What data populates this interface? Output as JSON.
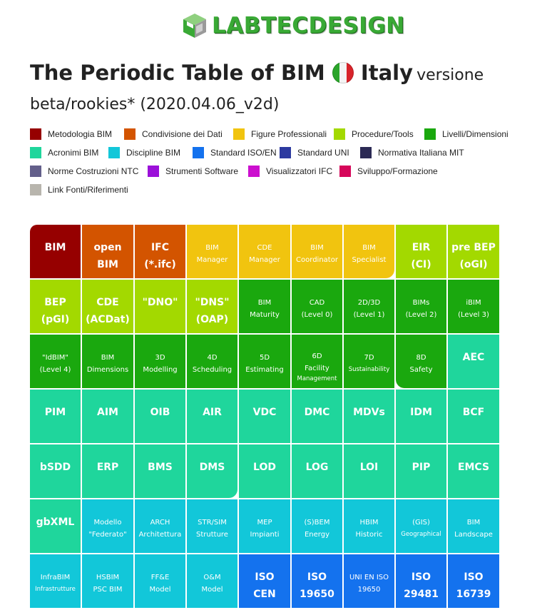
{
  "logo": {
    "text": "LABTECDESIGN",
    "icon": "cube-icon"
  },
  "title": {
    "main": "The Periodic Table of BIM",
    "country": "Italy",
    "version_prefix": "versione",
    "version": "beta/rookies* (2020.04.06_v2d)",
    "flag_icon": "italy-flag-icon"
  },
  "legend": [
    {
      "label": "Metodologia BIM",
      "color": "#960000"
    },
    {
      "label": "Condivisione dei Dati",
      "color": "#d35400"
    },
    {
      "label": "Figure Professionali",
      "color": "#f1c40f"
    },
    {
      "label": "Procedure/Tools",
      "color": "#a3d900"
    },
    {
      "label": "Livelli/Dimensioni",
      "color": "#1aa80e"
    },
    {
      "label": "Acronimi BIM",
      "color": "#1fd69c"
    },
    {
      "label": "Discipline BIM",
      "color": "#12c7d9"
    },
    {
      "label": "Standard ISO/EN",
      "color": "#1472ee"
    },
    {
      "label": "Standard UNI",
      "color": "#2d3aa0"
    },
    {
      "label": "Normativa Italiana MIT",
      "color": "#2c2a55"
    },
    {
      "label": "Norme Costruzioni NTC",
      "color": "#635f8a"
    },
    {
      "label": "Strumenti Software",
      "color": "#9b10d9"
    },
    {
      "label": "Visualizzatori IFC",
      "color": "#cc0fcf"
    },
    {
      "label": "Sviluppo/Formazione",
      "color": "#d6065a"
    },
    {
      "label": "Link Fonti/Riferimenti",
      "color": "#b8b5ad"
    }
  ],
  "table": {
    "rows": [
      [
        {
          "l1": "BIM",
          "l2": "",
          "size": "big",
          "color": "#960000"
        },
        {
          "l1": "open",
          "l2": "BIM",
          "size": "big",
          "color": "#d35400"
        },
        {
          "l1": "IFC",
          "l2": "(*.ifc)",
          "size": "big",
          "color": "#d35400"
        },
        {
          "l1": "BIM",
          "l2": "Manager",
          "size": "sm",
          "color": "#f1c40f"
        },
        {
          "l1": "CDE",
          "l2": "Manager",
          "size": "sm",
          "color": "#f1c40f"
        },
        {
          "l1": "BIM",
          "l2": "Coordinator",
          "size": "sm",
          "color": "#f1c40f"
        },
        {
          "l1": "BIM",
          "l2": "Specialist",
          "size": "sm",
          "color": "#f1c40f"
        },
        {
          "l1": "EIR",
          "l2": "(CI)",
          "size": "big",
          "color": "#a3d900"
        },
        {
          "l1": "pre BEP",
          "l2": "(oGI)",
          "size": "big",
          "color": "#a3d900"
        }
      ],
      [
        {
          "l1": "BEP",
          "l2": "(pGI)",
          "size": "big",
          "color": "#a3d900"
        },
        {
          "l1": "CDE",
          "l2": "(ACDat)",
          "size": "big",
          "color": "#a3d900"
        },
        {
          "l1": "\"DNO\"",
          "l2": "",
          "size": "big",
          "color": "#a3d900"
        },
        {
          "l1": "\"DNS\"",
          "l2": "(OAP)",
          "size": "big",
          "color": "#a3d900"
        },
        {
          "l1": "BIM",
          "l2": "Maturity",
          "size": "sm",
          "color": "#1aa80e"
        },
        {
          "l1": "CAD",
          "l2": "(Level 0)",
          "size": "sm",
          "color": "#1aa80e"
        },
        {
          "l1": "2D/3D",
          "l2": "(Level 1)",
          "size": "sm",
          "color": "#1aa80e"
        },
        {
          "l1": "BIMs",
          "l2": "(Level 2)",
          "size": "sm",
          "color": "#1aa80e"
        },
        {
          "l1": "iBIM",
          "l2": "(Level 3)",
          "size": "sm",
          "color": "#1aa80e"
        }
      ],
      [
        {
          "l1": "\"IdBIM\"",
          "l2": "(Level 4)",
          "size": "sm",
          "color": "#1aa80e"
        },
        {
          "l1": "BIM",
          "l2": "Dimensions",
          "size": "sm",
          "color": "#1aa80e"
        },
        {
          "l1": "3D",
          "l2": "Modelling",
          "size": "sm",
          "color": "#1aa80e"
        },
        {
          "l1": "4D",
          "l2": "Scheduling",
          "size": "sm",
          "color": "#1aa80e"
        },
        {
          "l1": "5D",
          "l2": "Estimating",
          "size": "sm",
          "color": "#1aa80e"
        },
        {
          "l1": "6D",
          "l2": "Facility",
          "l3": "Management",
          "size": "sm",
          "color": "#1aa80e"
        },
        {
          "l1": "7D",
          "l2": "Sustainability",
          "size": "sm",
          "color": "#1aa80e",
          "tiny": true
        },
        {
          "l1": "8D",
          "l2": "Safety",
          "size": "sm",
          "color": "#1aa80e"
        },
        {
          "l1": "AEC",
          "l2": "",
          "size": "big",
          "color": "#1fd69c"
        }
      ],
      [
        {
          "l1": "PIM",
          "l2": "",
          "size": "big",
          "color": "#1fd69c"
        },
        {
          "l1": "AIM",
          "l2": "",
          "size": "big",
          "color": "#1fd69c"
        },
        {
          "l1": "OIB",
          "l2": "",
          "size": "big",
          "color": "#1fd69c"
        },
        {
          "l1": "AIR",
          "l2": "",
          "size": "big",
          "color": "#1fd69c"
        },
        {
          "l1": "VDC",
          "l2": "",
          "size": "big",
          "color": "#1fd69c"
        },
        {
          "l1": "DMC",
          "l2": "",
          "size": "big",
          "color": "#1fd69c"
        },
        {
          "l1": "MDVs",
          "l2": "",
          "size": "big",
          "color": "#1fd69c"
        },
        {
          "l1": "IDM",
          "l2": "",
          "size": "big",
          "color": "#1fd69c"
        },
        {
          "l1": "BCF",
          "l2": "",
          "size": "big",
          "color": "#1fd69c"
        }
      ],
      [
        {
          "l1": "bSDD",
          "l2": "",
          "size": "big",
          "color": "#1fd69c"
        },
        {
          "l1": "ERP",
          "l2": "",
          "size": "big",
          "color": "#1fd69c"
        },
        {
          "l1": "BMS",
          "l2": "",
          "size": "big",
          "color": "#1fd69c"
        },
        {
          "l1": "DMS",
          "l2": "",
          "size": "big",
          "color": "#1fd69c"
        },
        {
          "l1": "LOD",
          "l2": "",
          "size": "big",
          "color": "#1fd69c"
        },
        {
          "l1": "LOG",
          "l2": "",
          "size": "big",
          "color": "#1fd69c"
        },
        {
          "l1": "LOI",
          "l2": "",
          "size": "big",
          "color": "#1fd69c"
        },
        {
          "l1": "PIP",
          "l2": "",
          "size": "big",
          "color": "#1fd69c"
        },
        {
          "l1": "EMCS",
          "l2": "",
          "size": "big",
          "color": "#1fd69c"
        }
      ],
      [
        {
          "l1": "gbXML",
          "l2": "",
          "size": "big",
          "color": "#1fd69c"
        },
        {
          "l1": "Modello",
          "l2": "\"Federato\"",
          "size": "sm",
          "color": "#12c7d9"
        },
        {
          "l1": "ARCH",
          "l2": "Architettura",
          "size": "sm",
          "color": "#12c7d9"
        },
        {
          "l1": "STR/SIM",
          "l2": "Strutture",
          "size": "sm",
          "color": "#12c7d9"
        },
        {
          "l1": "MEP",
          "l2": "Impianti",
          "size": "sm",
          "color": "#12c7d9"
        },
        {
          "l1": "(S)BEM",
          "l2": "Energy",
          "size": "sm",
          "color": "#12c7d9"
        },
        {
          "l1": "HBIM",
          "l2": "Historic",
          "size": "sm",
          "color": "#12c7d9"
        },
        {
          "l1": "(GIS)",
          "l2": "Geographical",
          "size": "sm",
          "color": "#12c7d9",
          "tiny": true
        },
        {
          "l1": "BIM",
          "l2": "Landscape",
          "size": "sm",
          "color": "#12c7d9"
        }
      ],
      [
        {
          "l1": "InfraBIM",
          "l2": "Infrastrutture",
          "size": "sm",
          "color": "#12c7d9",
          "tiny": true
        },
        {
          "l1": "HSBIM",
          "l2": "PSC BIM",
          "size": "sm",
          "color": "#12c7d9"
        },
        {
          "l1": "FF&E",
          "l2": "Model",
          "size": "sm",
          "color": "#12c7d9"
        },
        {
          "l1": "O&M",
          "l2": "Model",
          "size": "sm",
          "color": "#12c7d9"
        },
        {
          "l1": "ISO",
          "l2": "CEN",
          "size": "big",
          "color": "#1472ee"
        },
        {
          "l1": "ISO",
          "l2": "19650",
          "size": "big",
          "color": "#1472ee"
        },
        {
          "l1": "UNI EN ISO",
          "l2": "19650",
          "size": "sm",
          "color": "#1472ee"
        },
        {
          "l1": "ISO",
          "l2": "29481",
          "size": "big",
          "color": "#1472ee"
        },
        {
          "l1": "ISO",
          "l2": "16739",
          "size": "big",
          "color": "#1472ee"
        }
      ]
    ]
  }
}
